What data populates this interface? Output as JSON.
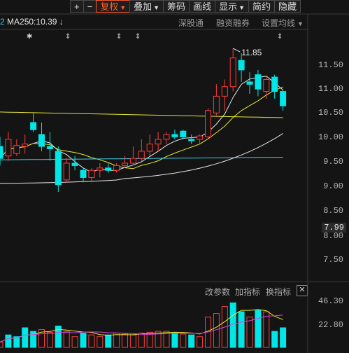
{
  "toolbar": {
    "plus": "+",
    "minus": "−",
    "rights": "复权",
    "overlay": "叠加",
    "funds": "筹码",
    "draw": "画线",
    "display": "显示",
    "simple": "简约",
    "hide": "隐藏"
  },
  "ma": {
    "prefix": "2",
    "label": "MA250:",
    "value": "10.39",
    "arrow": "↓"
  },
  "options": {
    "shengutong": "深股通",
    "margin": "融资融券",
    "set_ma": "设置均线"
  },
  "price_axis": [
    "11.50",
    "11.00",
    "10.50",
    "10.00",
    "9.50",
    "9.00",
    "8.50",
    "8.00",
    "7.50"
  ],
  "current_price": "7.99",
  "peak_label": "11.85",
  "volume_panel": {
    "change_params": "改参数",
    "add_indicator": "加指标",
    "switch_indicator": "换指标",
    "close": "✕",
    "axis": [
      "46.30",
      "22.80"
    ]
  },
  "colors": {
    "up": "#ff3b3b",
    "down": "#00e5e5",
    "ma_white": "#e6e6e6",
    "ma_yellow": "#e6e62e",
    "ma_cyan": "#3ccfe6",
    "ma_magenta": "#e040e0"
  },
  "chart_data": {
    "type": "candlestick",
    "ylim": [
      7.25,
      11.95
    ],
    "candles": [
      {
        "o": 9.8,
        "h": 10.0,
        "l": 9.4,
        "c": 9.55
      },
      {
        "o": 9.6,
        "h": 10.1,
        "l": 9.5,
        "c": 9.95
      },
      {
        "o": 9.65,
        "h": 9.95,
        "l": 9.6,
        "c": 9.82
      },
      {
        "o": 9.8,
        "h": 10.05,
        "l": 9.65,
        "c": 9.85
      },
      {
        "o": 10.3,
        "h": 10.52,
        "l": 10.1,
        "c": 10.15
      },
      {
        "o": 10.05,
        "h": 10.3,
        "l": 9.7,
        "c": 9.8
      },
      {
        "o": 9.8,
        "h": 10.1,
        "l": 9.5,
        "c": 9.75
      },
      {
        "o": 9.7,
        "h": 9.8,
        "l": 8.85,
        "c": 9.0
      },
      {
        "o": 9.1,
        "h": 9.55,
        "l": 9.05,
        "c": 9.45
      },
      {
        "o": 9.45,
        "h": 9.6,
        "l": 9.3,
        "c": 9.4
      },
      {
        "o": 9.3,
        "h": 9.35,
        "l": 9.05,
        "c": 9.15
      },
      {
        "o": 9.15,
        "h": 9.35,
        "l": 9.05,
        "c": 9.3
      },
      {
        "o": 9.3,
        "h": 9.45,
        "l": 9.15,
        "c": 9.35
      },
      {
        "o": 9.35,
        "h": 9.45,
        "l": 9.25,
        "c": 9.3
      },
      {
        "o": 9.3,
        "h": 9.45,
        "l": 9.25,
        "c": 9.4
      },
      {
        "o": 9.4,
        "h": 9.6,
        "l": 9.35,
        "c": 9.45
      },
      {
        "o": 9.45,
        "h": 9.8,
        "l": 9.4,
        "c": 9.55
      },
      {
        "o": 9.55,
        "h": 9.95,
        "l": 9.5,
        "c": 9.7
      },
      {
        "o": 9.7,
        "h": 10.05,
        "l": 9.6,
        "c": 9.85
      },
      {
        "o": 9.85,
        "h": 10.1,
        "l": 9.7,
        "c": 9.95
      },
      {
        "o": 9.95,
        "h": 10.1,
        "l": 9.85,
        "c": 10.05
      },
      {
        "o": 10.05,
        "h": 10.15,
        "l": 9.95,
        "c": 10.0
      },
      {
        "o": 10.12,
        "h": 10.15,
        "l": 9.95,
        "c": 10.0
      },
      {
        "o": 9.95,
        "h": 10.05,
        "l": 9.85,
        "c": 9.92
      },
      {
        "o": 9.95,
        "h": 10.05,
        "l": 9.85,
        "c": 10.02
      },
      {
        "o": 10.0,
        "h": 10.6,
        "l": 9.95,
        "c": 10.55
      },
      {
        "o": 10.5,
        "h": 11.1,
        "l": 10.45,
        "c": 10.85
      },
      {
        "o": 10.85,
        "h": 11.2,
        "l": 10.55,
        "c": 11.05
      },
      {
        "o": 11.05,
        "h": 11.85,
        "l": 10.95,
        "c": 11.65
      },
      {
        "o": 11.6,
        "h": 11.75,
        "l": 11.15,
        "c": 11.4
      },
      {
        "o": 11.15,
        "h": 11.35,
        "l": 10.9,
        "c": 11.1
      },
      {
        "o": 11.3,
        "h": 11.4,
        "l": 10.85,
        "c": 11.0
      },
      {
        "o": 10.95,
        "h": 11.25,
        "l": 10.8,
        "c": 11.2
      },
      {
        "o": 11.25,
        "h": 11.3,
        "l": 10.8,
        "c": 10.95
      },
      {
        "o": 10.95,
        "h": 10.98,
        "l": 10.55,
        "c": 10.65
      }
    ],
    "volume": [
      {
        "v": 6,
        "up": true
      },
      {
        "v": 14,
        "up": false
      },
      {
        "v": 12,
        "up": false
      },
      {
        "v": 22,
        "up": false
      },
      {
        "v": 18,
        "up": false
      },
      {
        "v": 20,
        "up": true
      },
      {
        "v": 17,
        "up": true
      },
      {
        "v": 24,
        "up": false
      },
      {
        "v": 18,
        "up": true
      },
      {
        "v": 12,
        "up": true
      },
      {
        "v": 16,
        "up": false
      },
      {
        "v": 14,
        "up": true
      },
      {
        "v": 12,
        "up": true
      },
      {
        "v": 14,
        "up": false
      },
      {
        "v": 16,
        "up": true
      },
      {
        "v": 15,
        "up": true
      },
      {
        "v": 14,
        "up": true
      },
      {
        "v": 16,
        "up": true
      },
      {
        "v": 17,
        "up": true
      },
      {
        "v": 18,
        "up": true
      },
      {
        "v": 18,
        "up": true
      },
      {
        "v": 16,
        "up": false
      },
      {
        "v": 15,
        "up": true
      },
      {
        "v": 14,
        "up": false
      },
      {
        "v": 12,
        "up": true
      },
      {
        "v": 34,
        "up": true
      },
      {
        "v": 38,
        "up": true
      },
      {
        "v": 46,
        "up": true
      },
      {
        "v": 50,
        "up": false
      },
      {
        "v": 40,
        "up": false
      },
      {
        "v": 34,
        "up": true
      },
      {
        "v": 42,
        "up": false
      },
      {
        "v": 40,
        "up": true
      },
      {
        "v": 18,
        "up": false
      },
      {
        "v": 22,
        "up": false
      }
    ],
    "vol_ylim": [
      0,
      55
    ]
  }
}
